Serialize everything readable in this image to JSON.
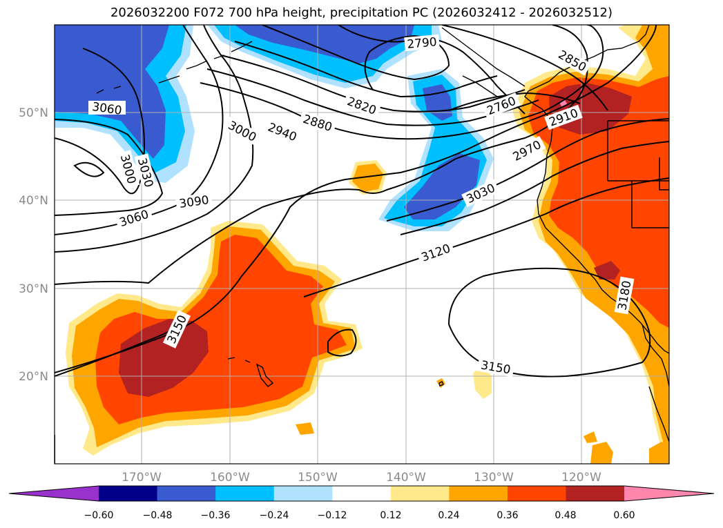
{
  "title": "2026032200 F072 700 hPa height, precipitation PC (2026032412 - 2026032512)",
  "lon_ticks": [
    "170°W",
    "160°W",
    "150°W",
    "140°W",
    "130°W",
    "120°W"
  ],
  "lat_ticks": [
    "50°N",
    "40°N",
    "30°N",
    "20°N"
  ],
  "colorbar": {
    "ticks": [
      "−0.60",
      "−0.48",
      "−0.36",
      "−0.24",
      "−0.12",
      "0.12",
      "0.24",
      "0.36",
      "0.48",
      "0.60"
    ],
    "colors": [
      "#9932cc",
      "#00008b",
      "#3a5bcf",
      "#00bfff",
      "#b0e2ff",
      "#ffffff",
      "#ffe98a",
      "#ffa500",
      "#ff4500",
      "#b22222",
      "#ff87ae"
    ]
  },
  "contour_labels": [
    "3060",
    "3000",
    "3030",
    "3000",
    "3060",
    "3090",
    "2940",
    "2880",
    "2820",
    "2790",
    "2760",
    "2850",
    "2910",
    "2970",
    "3030",
    "3120",
    "3150",
    "3150",
    "3180"
  ],
  "colors": {
    "neg_dark": "#3a5bcf",
    "neg_mid": "#00bfff",
    "neg_light": "#b0e2ff",
    "pos_light": "#ffe98a",
    "pos_mid": "#ffa500",
    "pos_high": "#ff4500",
    "pos_dark": "#b22222",
    "pos_max": "#ff87ae"
  }
}
